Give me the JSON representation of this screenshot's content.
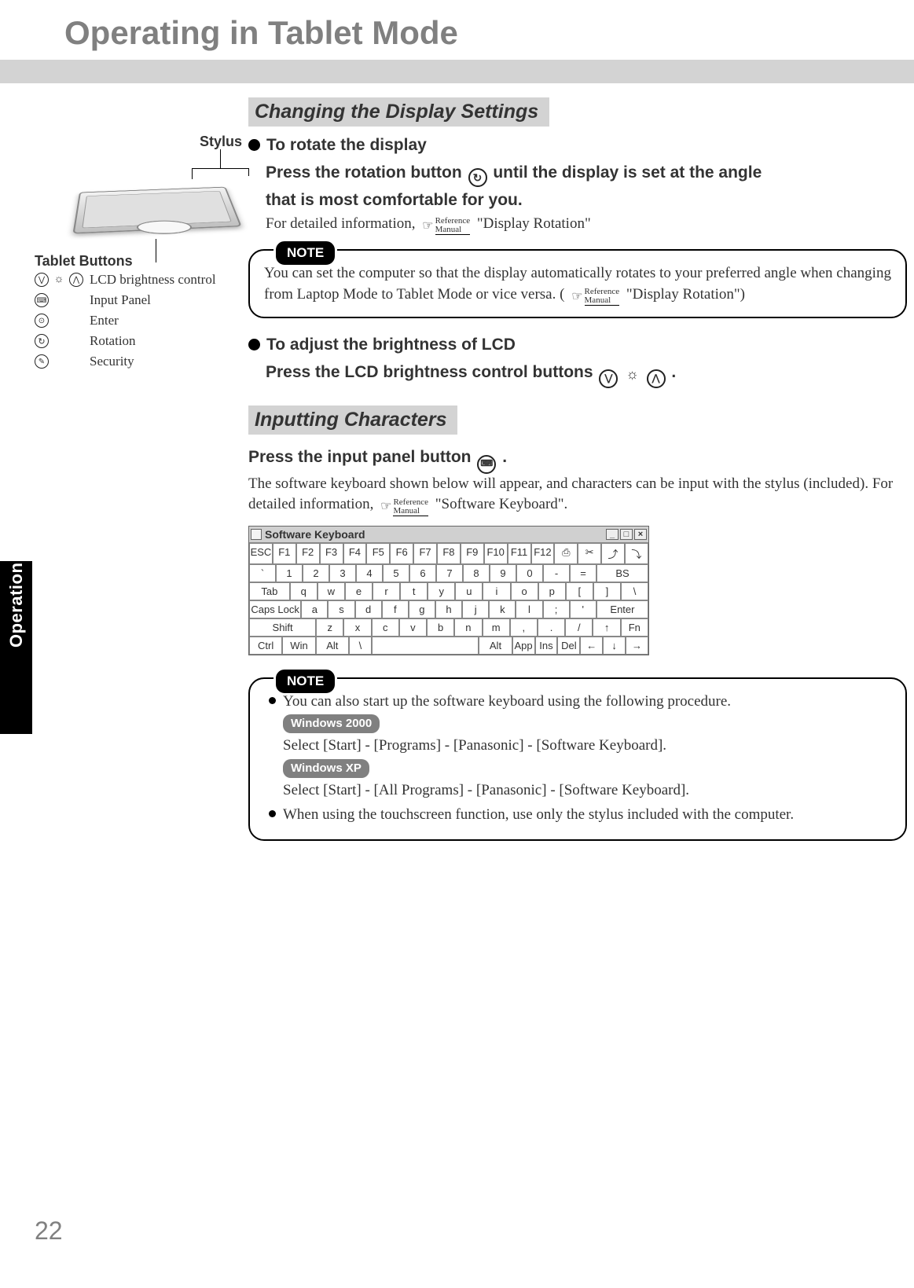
{
  "page": {
    "title": "Operating in Tablet Mode",
    "side_tab": "Operation",
    "number": "22"
  },
  "left": {
    "stylus_label": "Stylus",
    "buttons_heading": "Tablet Buttons",
    "rows": [
      {
        "icons": [
          "down",
          "sun",
          "up"
        ],
        "label": "LCD brightness control"
      },
      {
        "icons": [
          "keyboard"
        ],
        "label": "Input Panel"
      },
      {
        "icons": [
          "enter"
        ],
        "label": "Enter"
      },
      {
        "icons": [
          "rotate"
        ],
        "label": "Rotation"
      },
      {
        "icons": [
          "security"
        ],
        "label": "Security"
      }
    ]
  },
  "sections": {
    "changing": {
      "heading": "Changing the Display Settings",
      "rotate": {
        "title": "To rotate the display",
        "line1a": "Press the rotation button ",
        "line1b": " until the display is set at the angle",
        "line2": "that is most comfortable for you.",
        "detail_a": "For detailed information, ",
        "detail_b": " \"Display Rotation\""
      },
      "note1": {
        "tag": "NOTE",
        "text_a": "You can set the computer so that the display automatically rotates to your preferred angle when changing from Laptop Mode to Tablet Mode or vice versa.  (",
        "text_b": " \"Display Rotation\")"
      },
      "brightness": {
        "title": "To adjust the brightness of LCD",
        "line_a": "Press the LCD brightness control buttons ",
        "line_b": " ."
      }
    },
    "inputting": {
      "heading": "Inputting Characters",
      "press_a": "Press the input panel button ",
      "press_b": ".",
      "body_a": "The software keyboard shown below will appear, and characters can be input with the stylus (included).  For detailed information, ",
      "body_b": " \"Software Keyboard\".",
      "keyboard": {
        "title": "Software Keyboard",
        "row0": [
          "ESC",
          "F1",
          "F2",
          "F3",
          "F4",
          "F5",
          "F6",
          "F7",
          "F8",
          "F9",
          "F10",
          "F11",
          "F12",
          "⎙",
          "✂",
          "⤴",
          "⤵"
        ],
        "row1": [
          "`",
          "1",
          "2",
          "3",
          "4",
          "5",
          "6",
          "7",
          "8",
          "9",
          "0",
          "-",
          "=",
          "BS"
        ],
        "row2": [
          "Tab",
          "q",
          "w",
          "e",
          "r",
          "t",
          "y",
          "u",
          "i",
          "o",
          "p",
          "[",
          "]",
          "\\"
        ],
        "row3": [
          "Caps Lock",
          "a",
          "s",
          "d",
          "f",
          "g",
          "h",
          "j",
          "k",
          "l",
          ";",
          "'",
          "Enter"
        ],
        "row4": [
          "Shift",
          "z",
          "x",
          "c",
          "v",
          "b",
          "n",
          "m",
          ",",
          ".",
          "/",
          "↑",
          "Fn"
        ],
        "row5": [
          "Ctrl",
          "Win",
          "Alt",
          "\\",
          " ",
          "Alt",
          "App",
          "Ins",
          "Del",
          "←",
          "↓",
          "→"
        ]
      },
      "note2": {
        "tag": "NOTE",
        "li1": "You can also start up the software keyboard using the following procedure.",
        "os1": "Windows 2000",
        "os1_path": "Select [Start] - [Programs] - [Panasonic] - [Software Keyboard].",
        "os2": "Windows XP",
        "os2_path": "Select [Start] - [All Programs] - [Panasonic] - [Software Keyboard].",
        "li2": "When using the touchscreen function, use only the stylus included with the computer."
      }
    }
  },
  "ref": {
    "hand": "☞",
    "top": "Reference",
    "bot": "Manual"
  },
  "colors": {
    "gray_band": "#d3d3d3",
    "title_gray": "#808080",
    "black": "#000000",
    "os_tag_bg": "#808080"
  }
}
